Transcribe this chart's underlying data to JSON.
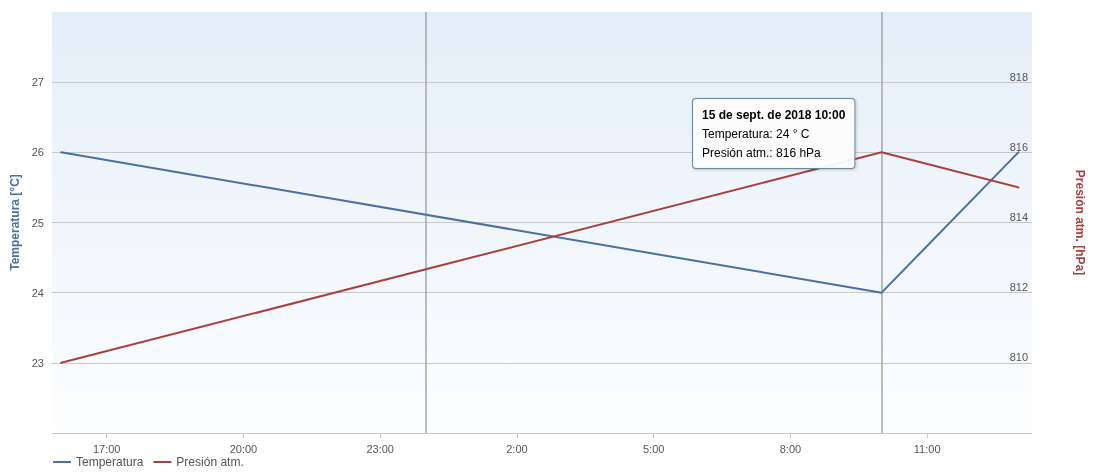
{
  "chart_data": {
    "type": "line",
    "ylabel": "Temperatura [°C]",
    "y2label": "Presión atm. [hPa]",
    "x": [
      "2018-09-14T16:00",
      "2018-09-15T10:00",
      "2018-09-15T13:00"
    ],
    "series": [
      {
        "name": "Temperatura",
        "color": "#4a6fa5",
        "values": [
          26,
          24,
          26
        ]
      },
      {
        "name": "Presión atm.",
        "color": "#a8403e",
        "values": [
          810,
          816,
          815
        ],
        "axis": "y2"
      }
    ],
    "xlim": [
      "2018-09-14T15:48",
      "2018-09-15T13:18"
    ],
    "xticks": [
      {
        "value": "2018-09-14T17:00",
        "label": "17:00"
      },
      {
        "value": "2018-09-14T20:00",
        "label": "20:00"
      },
      {
        "value": "2018-09-14T23:00",
        "label": "23:00"
      },
      {
        "value": "2018-09-15T02:00",
        "label": "2:00"
      },
      {
        "value": "2018-09-15T05:00",
        "label": "5:00"
      },
      {
        "value": "2018-09-15T08:00",
        "label": "8:00"
      },
      {
        "value": "2018-09-15T11:00",
        "label": "11:00"
      }
    ],
    "ylim": [
      22,
      28
    ],
    "yticks": [
      23,
      24,
      25,
      26,
      27
    ],
    "y2lim": [
      808,
      820
    ],
    "y2ticks": [
      810,
      812,
      814,
      816,
      818
    ],
    "ref_lines": [
      {
        "axis": "x",
        "value": "2018-09-15T00:00"
      },
      {
        "axis": "x",
        "value": "2018-09-15T10:00"
      }
    ],
    "annotations": [
      "15 de sept. de 2018 10:00",
      "Temperatura: 24 ° C",
      "Presión atm.: 816 hPa"
    ],
    "grid": "y",
    "legend": "bottom left",
    "marker": "none",
    "line_style": "solid"
  }
}
